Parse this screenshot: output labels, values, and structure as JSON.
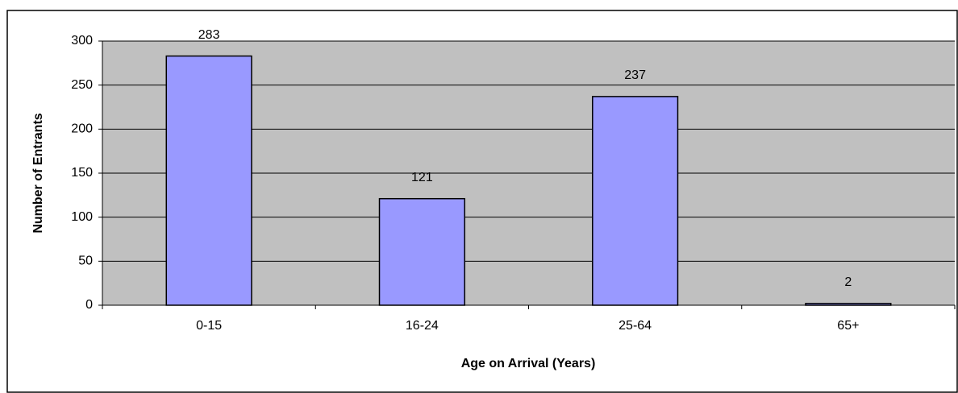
{
  "chart_data": {
    "type": "bar",
    "x_label": "Age on Arrival (Years)",
    "y_label": "Number of Entrants",
    "categories": [
      "0-15",
      "16-24",
      "25-64",
      "65+"
    ],
    "values": [
      283,
      121,
      237,
      2
    ],
    "color": "#9999ff",
    "ylim": [
      0,
      300
    ],
    "yticks": [
      0,
      50,
      100,
      150,
      200,
      250,
      300
    ],
    "grid": true
  }
}
